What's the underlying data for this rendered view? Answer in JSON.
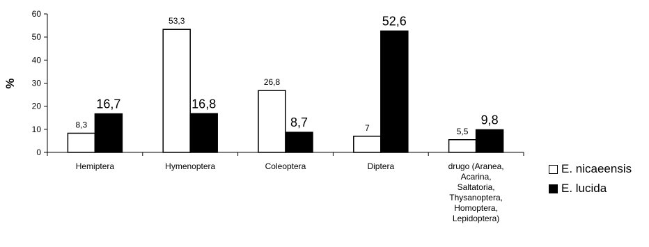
{
  "chart_data": {
    "type": "bar",
    "ylabel": "%",
    "ylim": [
      0,
      60
    ],
    "yticks": [
      "0",
      "10",
      "20",
      "30",
      "40",
      "50",
      "60"
    ],
    "categories": [
      "Hemiptera",
      "Hymenoptera",
      "Coleoptera",
      "Diptera",
      "drugo (Aranea, Acarina, Saltatoria, Thysanoptera, Homoptera, Lepidoptera)"
    ],
    "category_lines": [
      [
        "Hemiptera"
      ],
      [
        "Hymenoptera"
      ],
      [
        "Coleoptera"
      ],
      [
        "Diptera"
      ],
      [
        "drugo (Aranea,",
        "Acarina,",
        "Saltatoria,",
        "Thysanoptera,",
        "Homoptera,",
        "Lepidoptera)"
      ]
    ],
    "series": [
      {
        "name": "E. nicaeensis",
        "color": "#ffffff",
        "values": [
          8.3,
          53.3,
          26.8,
          7,
          5.5
        ],
        "labels": [
          "8,3",
          "53,3",
          "26,8",
          "7",
          "5,5"
        ]
      },
      {
        "name": "E. lucida",
        "color": "#000000",
        "values": [
          16.7,
          16.8,
          8.7,
          52.6,
          9.8
        ],
        "labels": [
          "16,7",
          "16,8",
          "8,7",
          "52,6",
          "9,8"
        ]
      }
    ],
    "grid": false,
    "legend_position": "right"
  }
}
